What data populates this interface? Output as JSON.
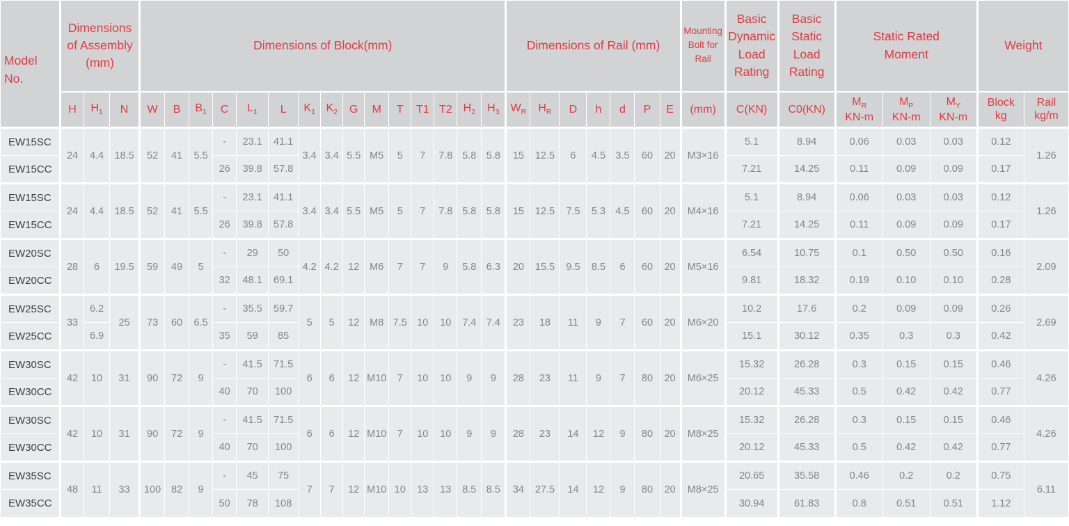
{
  "colors": {
    "accent_red": "#e23a40",
    "header_bg": "#d2d3d5",
    "cell_bg": "#e9eaec",
    "model_text": "#3e3e40",
    "value_text": "#828487",
    "separator": "#ffffff"
  },
  "header": {
    "model_label": "Model No.",
    "groups": [
      {
        "key": "assembly",
        "label": "Dimensions\nof Assembly\n(mm)",
        "keys": [
          "H",
          "H1",
          "N"
        ]
      },
      {
        "key": "block",
        "label": "Dimensions of Block(mm)",
        "keys": [
          "W",
          "B",
          "B1",
          "C",
          "L1",
          "L",
          "K1",
          "K2",
          "G",
          "M",
          "T",
          "T1",
          "T2",
          "H2",
          "H3"
        ]
      },
      {
        "key": "rail",
        "label": "Dimensions of Rail (mm)",
        "keys": [
          "WR",
          "HR",
          "D",
          "h",
          "d",
          "P",
          "E"
        ]
      },
      {
        "key": "mounting",
        "label": "Mounting\nBolt for\nRail",
        "keys": [
          "bolt"
        ]
      },
      {
        "key": "dynamic",
        "label": "Basic\nDynamic\nLoad\nRating",
        "keys": [
          "C_KN"
        ]
      },
      {
        "key": "static",
        "label": "Basic\nStatic\nLoad\nRating",
        "keys": [
          "C0_KN"
        ]
      },
      {
        "key": "moment",
        "label": "Static Rated\nMoment",
        "keys": [
          "MR",
          "MP",
          "MY"
        ]
      },
      {
        "key": "weight",
        "label": "Weight",
        "keys": [
          "block_kg",
          "rail_kgm"
        ]
      }
    ]
  },
  "columns": [
    {
      "key": "H",
      "label": "H"
    },
    {
      "key": "H1",
      "label": "H",
      "sub": "1"
    },
    {
      "key": "N",
      "label": "N"
    },
    {
      "key": "W",
      "label": "W"
    },
    {
      "key": "B",
      "label": "B"
    },
    {
      "key": "B1",
      "label": "B",
      "sub": "1"
    },
    {
      "key": "C",
      "label": "C"
    },
    {
      "key": "L1",
      "label": "L",
      "sub": "1"
    },
    {
      "key": "L",
      "label": "L"
    },
    {
      "key": "K1",
      "label": "K",
      "sub": "1"
    },
    {
      "key": "K2",
      "label": "K",
      "sub": "2"
    },
    {
      "key": "G",
      "label": "G"
    },
    {
      "key": "M",
      "label": "M"
    },
    {
      "key": "T",
      "label": "T"
    },
    {
      "key": "T1",
      "label": "T1"
    },
    {
      "key": "T2",
      "label": "T2"
    },
    {
      "key": "H2",
      "label": "H",
      "sub": "2"
    },
    {
      "key": "H3",
      "label": "H",
      "sub": "3"
    },
    {
      "key": "WR",
      "label": "W",
      "sub": "R"
    },
    {
      "key": "HR",
      "label": "H",
      "sub": "R"
    },
    {
      "key": "D",
      "label": "D"
    },
    {
      "key": "h",
      "label": "h"
    },
    {
      "key": "d",
      "label": "d"
    },
    {
      "key": "P",
      "label": "P"
    },
    {
      "key": "E",
      "label": "E"
    },
    {
      "key": "bolt",
      "label": "(mm)"
    },
    {
      "key": "C_KN",
      "label": "C(KN)"
    },
    {
      "key": "C0_KN",
      "label": "C0(KN)"
    },
    {
      "key": "MR",
      "label": "M",
      "sub": "R",
      "line2": "KN-m"
    },
    {
      "key": "MP",
      "label": "M",
      "sub": "P",
      "line2": "KN-m"
    },
    {
      "key": "MY",
      "label": "M",
      "sub": "Y",
      "line2": "KN-m"
    },
    {
      "key": "block_kg",
      "label": "Block",
      "line2": "kg"
    },
    {
      "key": "rail_kgm",
      "label": "Rail",
      "line2": "kg/m"
    }
  ],
  "groups": [
    {
      "models": [
        "EW15SC",
        "EW15CC"
      ],
      "values": {
        "H": "24",
        "H1": "4.4",
        "N": "18.5",
        "W": "52",
        "B": "41",
        "B1": "5.5",
        "C": [
          "-",
          "26"
        ],
        "L1": [
          "23.1",
          "39.8"
        ],
        "L": [
          "41.1",
          "57.8"
        ],
        "K1": "3.4",
        "K2": "3.4",
        "G": "5.5",
        "M": "M5",
        "T": "5",
        "T1": "7",
        "T2": "7.8",
        "H2": "5.8",
        "H3": "5.8",
        "WR": "15",
        "HR": "12.5",
        "D": "6",
        "h": "4.5",
        "d": "3.5",
        "P": "60",
        "E": "20",
        "bolt": "M3×16",
        "C_KN": [
          "5.1",
          "7.21"
        ],
        "C0_KN": [
          "8.94",
          "14.25"
        ],
        "MR": [
          "0.06",
          "0.11"
        ],
        "MP": [
          "0.03",
          "0.09"
        ],
        "MY": [
          "0.03",
          "0.09"
        ],
        "block_kg": [
          "0.12",
          "0.17"
        ],
        "rail_kgm": "1.26"
      }
    },
    {
      "models": [
        "EW15SC",
        "EW15CC"
      ],
      "values": {
        "H": "24",
        "H1": "4.4",
        "N": "18.5",
        "W": "52",
        "B": "41",
        "B1": "5.5",
        "C": [
          "-",
          "26"
        ],
        "L1": [
          "23.1",
          "39.8"
        ],
        "L": [
          "41.1",
          "57.8"
        ],
        "K1": "3.4",
        "K2": "3.4",
        "G": "5.5",
        "M": "M5",
        "T": "5",
        "T1": "7",
        "T2": "7.8",
        "H2": "5.8",
        "H3": "5.8",
        "WR": "15",
        "HR": "12.5",
        "D": "7.5",
        "h": "5.3",
        "d": "4.5",
        "P": "60",
        "E": "20",
        "bolt": "M4×16",
        "C_KN": [
          "5.1",
          "7.21"
        ],
        "C0_KN": [
          "8.94",
          "14.25"
        ],
        "MR": [
          "0.06",
          "0.11"
        ],
        "MP": [
          "0.03",
          "0.09"
        ],
        "MY": [
          "0.03",
          "0.09"
        ],
        "block_kg": [
          "0.12",
          "0.17"
        ],
        "rail_kgm": "1.26"
      }
    },
    {
      "models": [
        "EW20SC",
        "EW20CC"
      ],
      "values": {
        "H": "28",
        "H1": "6",
        "N": "19.5",
        "W": "59",
        "B": "49",
        "B1": "5",
        "C": [
          "-",
          "32"
        ],
        "L1": [
          "29",
          "48.1"
        ],
        "L": [
          "50",
          "69.1"
        ],
        "K1": "4.2",
        "K2": "4.2",
        "G": "12",
        "M": "M6",
        "T": "7",
        "T1": "7",
        "T2": "9",
        "H2": "5.8",
        "H3": "6.3",
        "WR": "20",
        "HR": "15.5",
        "D": "9.5",
        "h": "8.5",
        "d": "6",
        "P": "60",
        "E": "20",
        "bolt": "M5×16",
        "C_KN": [
          "6.54",
          "9.81"
        ],
        "C0_KN": [
          "10.75",
          "18.32"
        ],
        "MR": [
          "0.1",
          "0.19"
        ],
        "MP": [
          "0.50",
          "0.10"
        ],
        "MY": [
          "0.50",
          "0.10"
        ],
        "block_kg": [
          "0.16",
          "0.28"
        ],
        "rail_kgm": "2.09"
      }
    },
    {
      "models": [
        "EW25SC",
        "EW25CC"
      ],
      "values": {
        "H": "33",
        "H1": [
          "6.2",
          "6.9"
        ],
        "N": "25",
        "W": "73",
        "B": "60",
        "B1": "6.5",
        "C": [
          "-",
          "35"
        ],
        "L1": [
          "35.5",
          "59"
        ],
        "L": [
          "59.7",
          "85"
        ],
        "K1": "5",
        "K2": "5",
        "G": "12",
        "M": "M8",
        "T": "7.5",
        "T1": "10",
        "T2": "10",
        "H2": "7.4",
        "H3": "7.4",
        "WR": "23",
        "HR": "18",
        "D": "11",
        "h": "9",
        "d": "7",
        "P": "60",
        "E": "20",
        "bolt": "M6×20",
        "C_KN": [
          "10.2",
          "15.1"
        ],
        "C0_KN": [
          "17.6",
          "30.12"
        ],
        "MR": [
          "0.2",
          "0.35"
        ],
        "MP": [
          "0.09",
          "0.3"
        ],
        "MY": [
          "0.09",
          "0.3"
        ],
        "block_kg": [
          "0.26",
          "0.42"
        ],
        "rail_kgm": "2.69"
      }
    },
    {
      "models": [
        "EW30SC",
        "EW30CC"
      ],
      "values": {
        "H": "42",
        "H1": "10",
        "N": "31",
        "W": "90",
        "B": "72",
        "B1": "9",
        "C": [
          "-",
          "40"
        ],
        "L1": [
          "41.5",
          "70"
        ],
        "L": [
          "71.5",
          "100"
        ],
        "K1": "6",
        "K2": "6",
        "G": "12",
        "M": "M10",
        "T": "7",
        "T1": "10",
        "T2": "10",
        "H2": "9",
        "H3": "9",
        "WR": "28",
        "HR": "23",
        "D": "11",
        "h": "9",
        "d": "7",
        "P": "80",
        "E": "20",
        "bolt": "M6×25",
        "C_KN": [
          "15.32",
          "20.12"
        ],
        "C0_KN": [
          "26.28",
          "45.33"
        ],
        "MR": [
          "0.3",
          "0.5"
        ],
        "MP": [
          "0.15",
          "0.42"
        ],
        "MY": [
          "0.15",
          "0.42"
        ],
        "block_kg": [
          "0.46",
          "0.77"
        ],
        "rail_kgm": "4.26"
      }
    },
    {
      "models": [
        "EW30SC",
        "EW30CC"
      ],
      "values": {
        "H": "42",
        "H1": "10",
        "N": "31",
        "W": "90",
        "B": "72",
        "B1": "9",
        "C": [
          "-",
          "40"
        ],
        "L1": [
          "41.5",
          "70"
        ],
        "L": [
          "71.5",
          "100"
        ],
        "K1": "6",
        "K2": "6",
        "G": "12",
        "M": "M10",
        "T": "7",
        "T1": "10",
        "T2": "10",
        "H2": "9",
        "H3": "9",
        "WR": "28",
        "HR": "23",
        "D": "14",
        "h": "12",
        "d": "9",
        "P": "80",
        "E": "20",
        "bolt": "M8×25",
        "C_KN": [
          "15.32",
          "20.12"
        ],
        "C0_KN": [
          "26.28",
          "45.33"
        ],
        "MR": [
          "0.3",
          "0.5"
        ],
        "MP": [
          "0.15",
          "0.42"
        ],
        "MY": [
          "0.15",
          "0.42"
        ],
        "block_kg": [
          "0.46",
          "0.77"
        ],
        "rail_kgm": "4.26"
      }
    },
    {
      "models": [
        "EW35SC",
        "EW35CC"
      ],
      "values": {
        "H": "48",
        "H1": "11",
        "N": "33",
        "W": "100",
        "B": "82",
        "B1": "9",
        "C": [
          "-",
          "50"
        ],
        "L1": [
          "45",
          "78"
        ],
        "L": [
          "75",
          "108"
        ],
        "K1": "7",
        "K2": "7",
        "G": "12",
        "M": "M10",
        "T": "10",
        "T1": "13",
        "T2": "13",
        "H2": "8.5",
        "H3": "8.5",
        "WR": "34",
        "HR": "27.5",
        "D": "14",
        "h": "12",
        "d": "9",
        "P": "80",
        "E": "20",
        "bolt": "M8×25",
        "C_KN": [
          "20.65",
          "30.94"
        ],
        "C0_KN": [
          "35.58",
          "61.83"
        ],
        "MR": [
          "0.46",
          "0.8"
        ],
        "MP": [
          "0.2",
          "0.51"
        ],
        "MY": [
          "0.2",
          "0.51"
        ],
        "block_kg": [
          "0.75",
          "1.12"
        ],
        "rail_kgm": "6.11"
      }
    }
  ]
}
